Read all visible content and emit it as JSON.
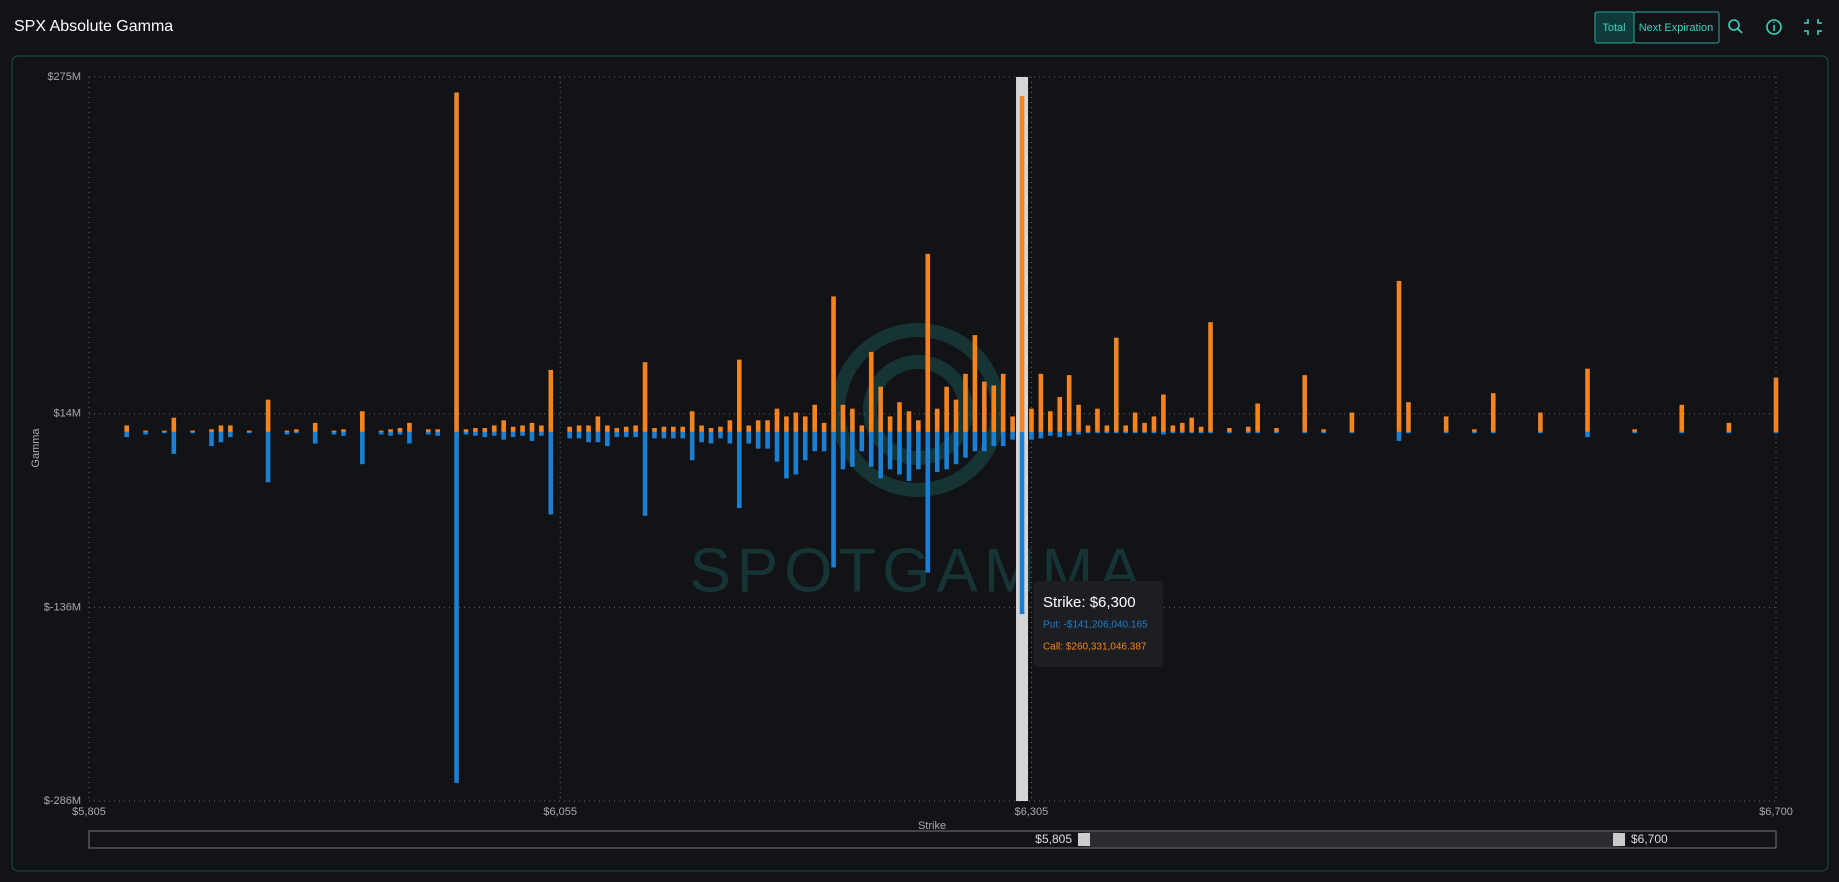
{
  "header": {
    "title": "SPX Absolute Gamma",
    "buttons": [
      "Total",
      "Next Expiration"
    ]
  },
  "chart_data": {
    "type": "bar",
    "watermark": "SPOTGAMMA",
    "x_label": "Strike",
    "y_label": "Gamma",
    "x": [
      5825,
      5835,
      5845,
      5850,
      5860,
      5870,
      5875,
      5880,
      5890,
      5900,
      5910,
      5915,
      5925,
      5935,
      5940,
      5950,
      5960,
      5965,
      5970,
      5975,
      5985,
      5990,
      6000,
      6005,
      6010,
      6015,
      6020,
      6025,
      6030,
      6035,
      6040,
      6045,
      6050,
      6060,
      6065,
      6070,
      6075,
      6080,
      6085,
      6090,
      6095,
      6100,
      6105,
      6110,
      6115,
      6120,
      6125,
      6130,
      6135,
      6140,
      6145,
      6150,
      6155,
      6160,
      6165,
      6170,
      6175,
      6180,
      6185,
      6190,
      6195,
      6200,
      6205,
      6210,
      6215,
      6220,
      6225,
      6230,
      6235,
      6240,
      6245,
      6250,
      6255,
      6260,
      6265,
      6270,
      6275,
      6280,
      6285,
      6290,
      6295,
      6300,
      6305,
      6310,
      6315,
      6320,
      6325,
      6330,
      6335,
      6340,
      6345,
      6350,
      6355,
      6360,
      6365,
      6370,
      6375,
      6380,
      6385,
      6390,
      6395,
      6400,
      6410,
      6420,
      6425,
      6435,
      6450,
      6460,
      6475,
      6500,
      6505,
      6525,
      6540,
      6550,
      6575,
      6600,
      6625,
      6650,
      6675,
      6700
    ],
    "series": [
      {
        "color": "#1b7fd3",
        "values": [
          -4000000.0,
          -2000000.0,
          -1000000.0,
          -17000000.0,
          -1000000.0,
          -11000000.0,
          -8000000.0,
          -4000000.0,
          -1000000.0,
          -39000000.0,
          -2000000.0,
          -1000000.0,
          -9000000.0,
          -2000000.0,
          -3000000.0,
          -25000000.0,
          -2000000.0,
          -3000000.0,
          -2000000.0,
          -9000000.0,
          -2000000.0,
          -3000000.0,
          -272000000.0,
          -2000000.0,
          -3000000.0,
          -4000000.0,
          -3000000.0,
          -6000000.0,
          -4000000.0,
          -3000000.0,
          -7000000.0,
          -3000000.0,
          -64000000.0,
          -5000000.0,
          -5000000.0,
          -8000000.0,
          -8000000.0,
          -11000000.0,
          -4000000.0,
          -4000000.0,
          -4000000.0,
          -65000000.0,
          -5000000.0,
          -5000000.0,
          -5000000.0,
          -5000000.0,
          -22000000.0,
          -8000000.0,
          -9000000.0,
          -5000000.0,
          -9000000.0,
          -59000000.0,
          -9000000.0,
          -13000000.0,
          -13000000.0,
          -23000000.0,
          -36000000.0,
          -33000000.0,
          -22000000.0,
          -15000000.0,
          -15000000.0,
          -105000000.0,
          -29000000.0,
          -27000000.0,
          -15000000.0,
          -27000000.0,
          -36000000.0,
          -29000000.0,
          -33000000.0,
          -38000000.0,
          -29000000.0,
          -109000000.0,
          -31000000.0,
          -29000000.0,
          -25000000.0,
          -20000000.0,
          -15000000.0,
          -15000000.0,
          -11000000.0,
          -11000000.0,
          -6000000.0,
          -141206040.165,
          -6000000.0,
          -5000000.0,
          -3000000.0,
          -4000000.0,
          -3000000.0,
          -2000000.0,
          -1000000.0,
          -1000000.0,
          -1000000.0,
          -1000000.0,
          -1000000.0,
          -1000000.0,
          -1000000.0,
          -1000000.0,
          -2000000.0,
          -1000000.0,
          -1000000.0,
          -1000000.0,
          -1000000.0,
          -1000000.0,
          -1000000.0,
          -1000000.0,
          -1000000.0,
          -1000000.0,
          -1000000.0,
          -1000000.0,
          -1000000.0,
          -7000000.0,
          -1000000.0,
          -1000000.0,
          -1000000.0,
          -1000000.0,
          -1000000.0,
          -4000000.0,
          -1000000.0,
          -1000000.0,
          -1000000.0,
          -1000000.0
        ]
      },
      {
        "color": "#f5831f",
        "values": [
          5000000.0,
          1000000.0,
          1000000.0,
          11000000.0,
          1000000.0,
          2000000.0,
          5000000.0,
          5000000.0,
          1000000.0,
          25000000.0,
          1000000.0,
          2000000.0,
          7000000.0,
          1000000.0,
          2000000.0,
          16000000.0,
          1000000.0,
          2000000.0,
          3000000.0,
          7000000.0,
          2000000.0,
          2000000.0,
          263000000.0,
          2000000.0,
          3000000.0,
          3000000.0,
          5000000.0,
          9000000.0,
          4000000.0,
          5000000.0,
          7000000.0,
          5000000.0,
          48000000.0,
          4000000.0,
          5000000.0,
          5000000.0,
          12000000.0,
          5000000.0,
          3000000.0,
          4000000.0,
          5000000.0,
          54000000.0,
          3000000.0,
          4000000.0,
          4000000.0,
          4000000.0,
          16000000.0,
          5000000.0,
          3000000.0,
          4000000.0,
          9000000.0,
          56000000.0,
          5000000.0,
          9000000.0,
          9000000.0,
          18000000.0,
          12000000.0,
          15000000.0,
          12000000.0,
          21000000.0,
          7000000.0,
          105000000.0,
          21000000.0,
          18000000.0,
          5000000.0,
          62000000.0,
          35000000.0,
          12000000.0,
          23000000.0,
          16000000.0,
          9000000.0,
          138000000.0,
          18000000.0,
          35000000.0,
          25000000.0,
          45000000.0,
          75000000.0,
          39000000.0,
          36000000.0,
          45000000.0,
          12000000.0,
          260331046.387,
          18000000.0,
          45000000.0,
          16000000.0,
          27000000.0,
          44000000.0,
          21000000.0,
          5000000.0,
          18000000.0,
          5000000.0,
          73000000.0,
          5000000.0,
          15000000.0,
          7000000.0,
          12000000.0,
          29000000.0,
          5000000.0,
          7000000.0,
          11000000.0,
          4000000.0,
          85000000.0,
          3000000.0,
          4000000.0,
          22000000.0,
          3000000.0,
          44000000.0,
          2000000.0,
          15000000.0,
          117000000.0,
          23000000.0,
          12000000.0,
          2000000.0,
          30000000.0,
          15000000.0,
          49000000.0,
          2000000.0,
          21000000.0,
          7000000.0,
          42000000.0
        ]
      }
    ],
    "xlim": [
      5805,
      6700
    ],
    "xticks": [
      {
        "value": 5805,
        "label": "$5,805"
      },
      {
        "value": 6055,
        "label": "$6,055"
      },
      {
        "value": 6305,
        "label": "$6,305"
      },
      {
        "value": 6700,
        "label": "$6,700"
      }
    ],
    "ylim": [
      -286000000,
      275000000
    ],
    "yticks": [
      {
        "value": 275000000,
        "label": "$275M"
      },
      {
        "value": 14000000,
        "label": "$14M"
      },
      {
        "value": -136000000,
        "label": "$-136M"
      },
      {
        "value": -286000000,
        "label": "$-286M"
      }
    ],
    "grid": true,
    "tooltip": {
      "x": 6300,
      "title": "Strike: $6,300",
      "lines": [
        "Put: -$141,206,040.165",
        "Call: $260,331,046.387"
      ]
    }
  }
}
